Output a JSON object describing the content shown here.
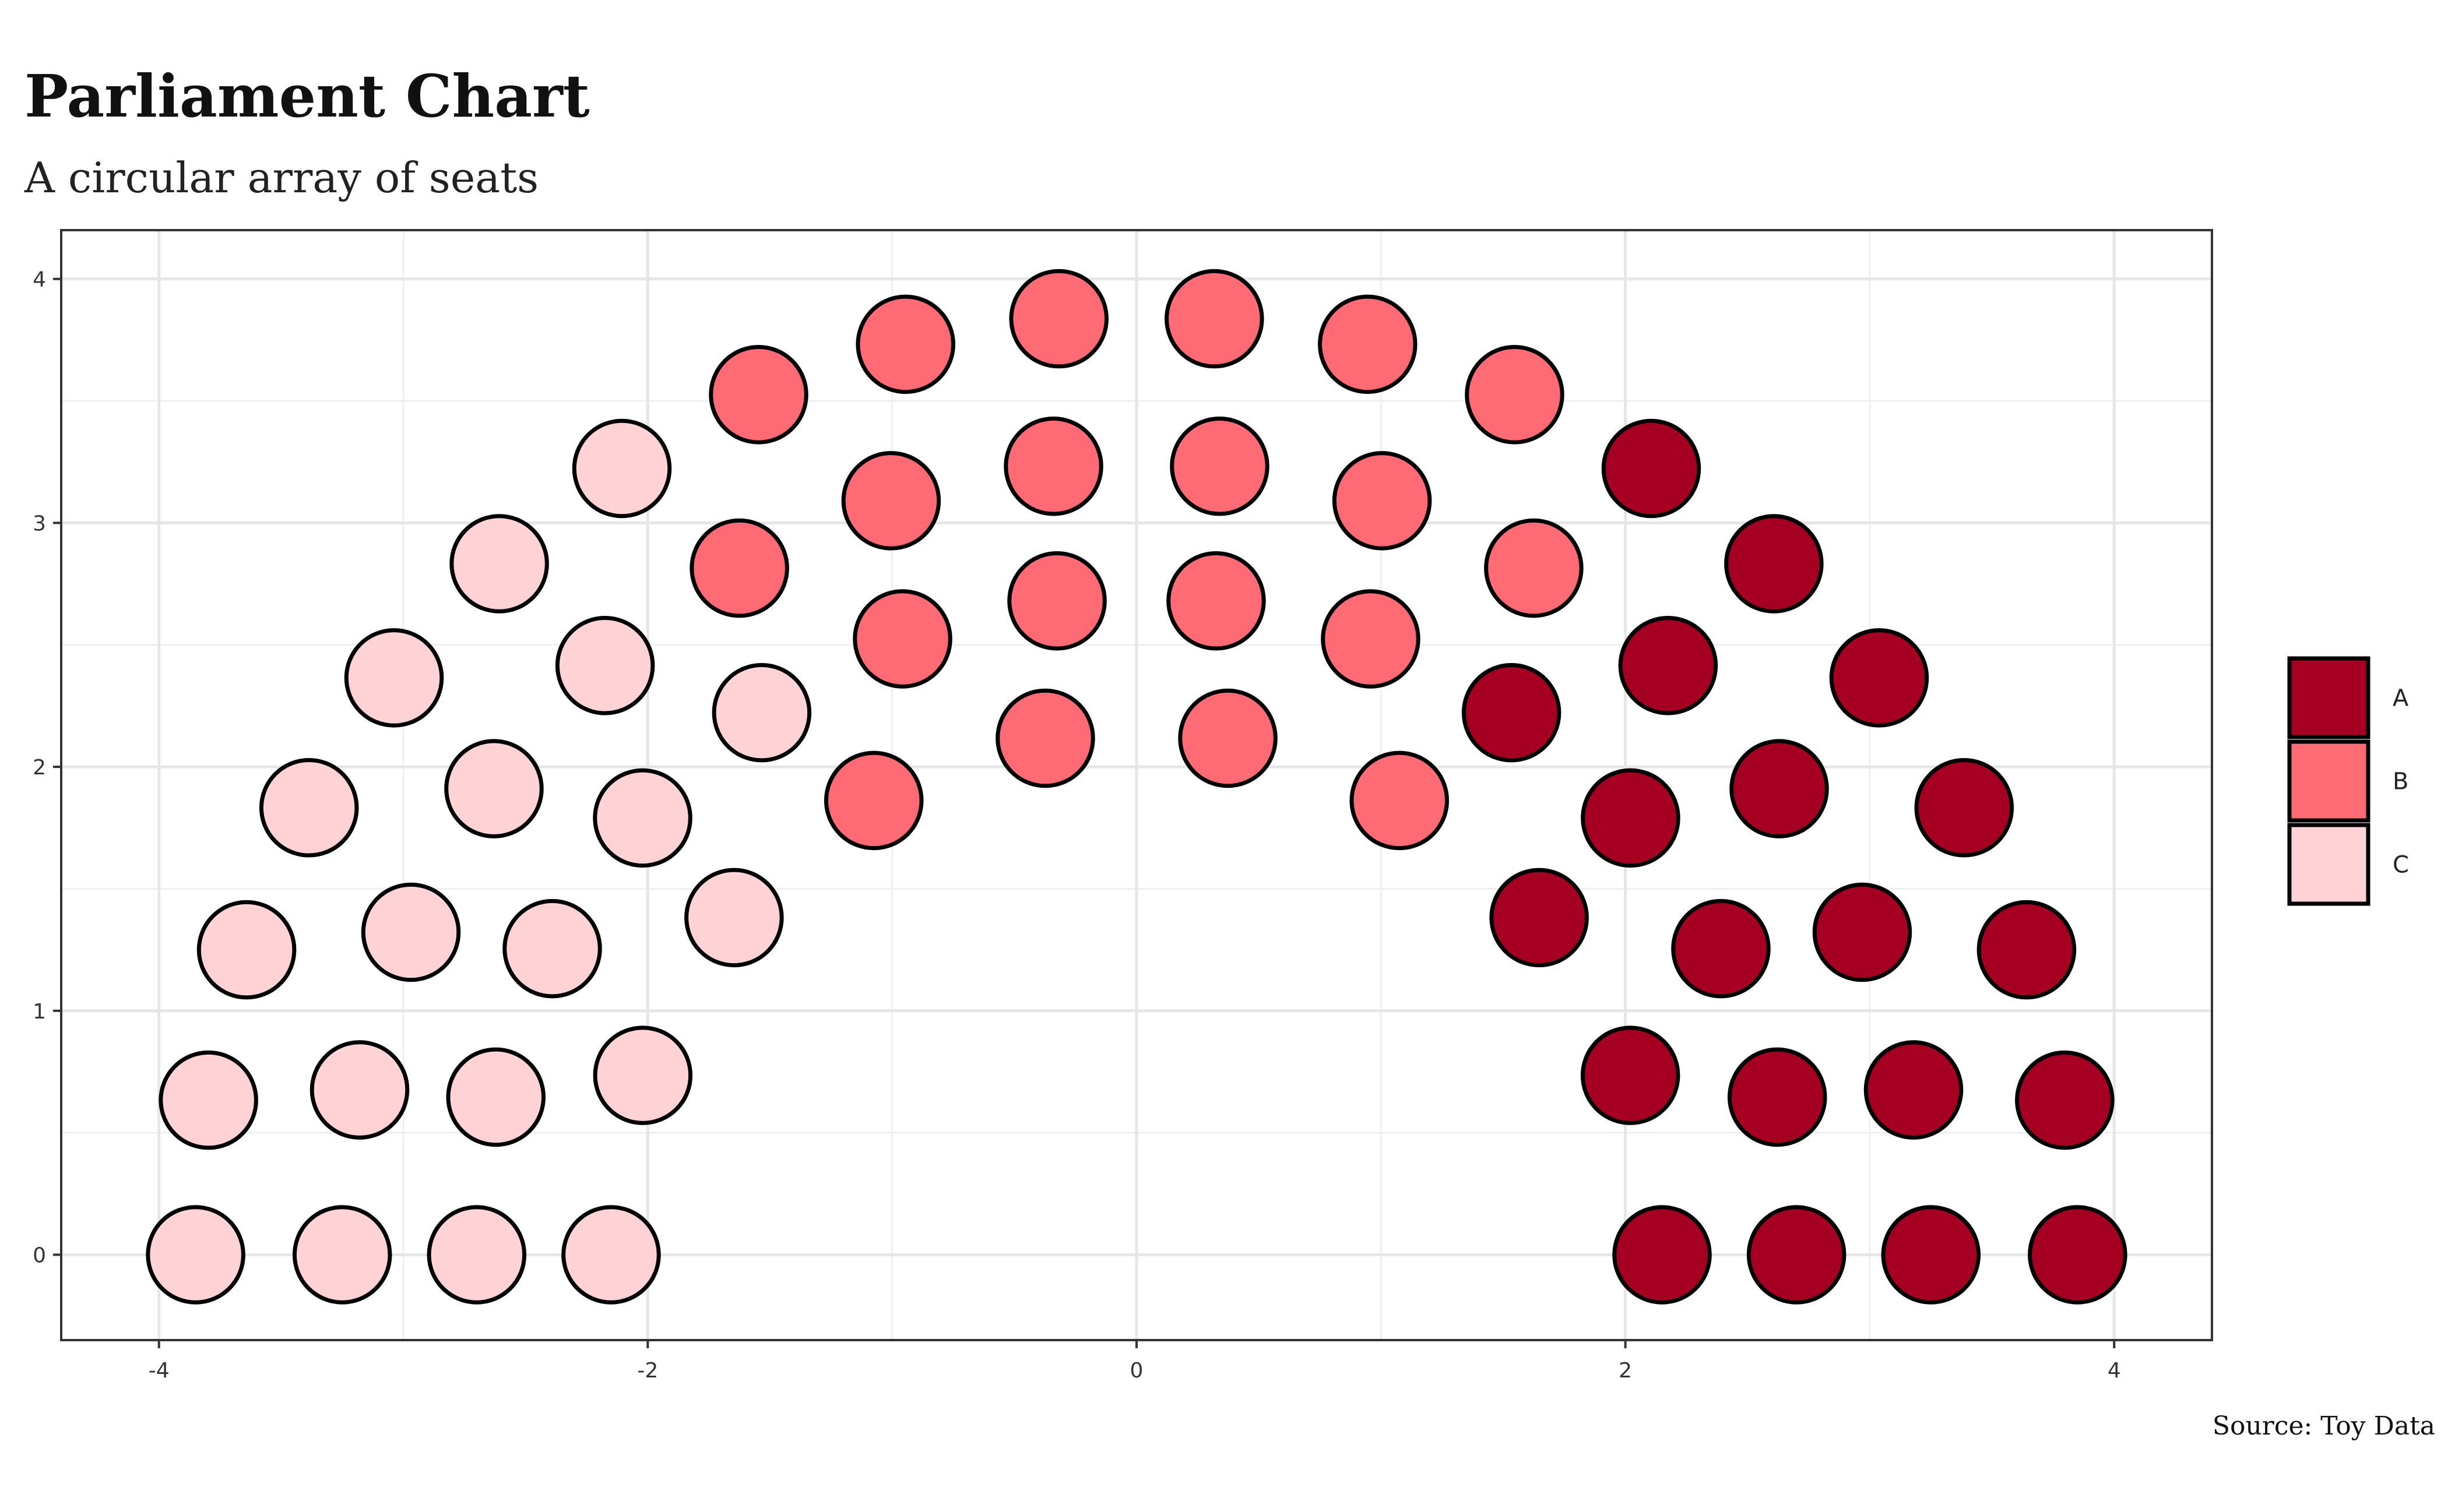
{
  "chart_data": {
    "type": "scatter",
    "title": "Parliament Chart",
    "subtitle": "A circular array of seats",
    "caption": "Source: Toy Data",
    "xlabel": "",
    "ylabel": "",
    "xlim": [
      -4.4,
      4.4
    ],
    "ylim": [
      -0.35,
      4.2
    ],
    "x_ticks": [
      -4,
      -2,
      0,
      2,
      4
    ],
    "y_ticks": [
      0,
      1,
      2,
      3,
      4
    ],
    "grid": true,
    "legend_position": "right",
    "legend": [
      {
        "name": "A",
        "color": "#a50021"
      },
      {
        "name": "B",
        "color": "#ff6b74"
      },
      {
        "name": "C",
        "color": "#ffd3d6"
      }
    ],
    "rows": [
      {
        "radius": 2.15,
        "seats": 10
      },
      {
        "radius": 2.7,
        "seats": 14
      },
      {
        "radius": 3.25,
        "seats": 16
      },
      {
        "radius": 3.85,
        "seats": 20
      }
    ],
    "parties": [
      {
        "name": "A",
        "color": "#a50021",
        "seats": 20
      },
      {
        "name": "B",
        "color": "#ff6b74",
        "seats": 20
      },
      {
        "name": "C",
        "color": "#ffd3d6",
        "seats": 20
      }
    ]
  }
}
